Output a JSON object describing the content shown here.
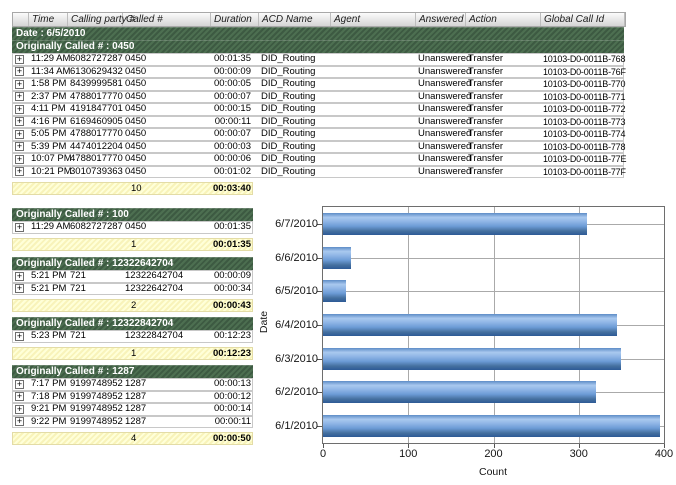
{
  "icons": {
    "expand": "+"
  },
  "table": {
    "columns": [
      "Time",
      "Calling party #",
      "Called #",
      "Duration",
      "ACD Name",
      "Agent",
      "Answered",
      "Action",
      "Global Call Id"
    ],
    "date_header": "Date : 6/5/2010",
    "groups": [
      {
        "title": "Originally Called # : 0450",
        "rows": [
          {
            "time": "11:29 AM",
            "calling": "6082727287",
            "called": "0450",
            "duration": "00:01:35",
            "acd": "DID_Routing",
            "agent": "",
            "answered": "Unanswered",
            "action": "Transfer",
            "global_id": "10103-D0-0011B-768"
          },
          {
            "time": "11:34 AM",
            "calling": "6130629432",
            "called": "0450",
            "duration": "00:00:09",
            "acd": "DID_Routing",
            "agent": "",
            "answered": "Unanswered",
            "action": "Transfer",
            "global_id": "10103-D0-0011B-76F"
          },
          {
            "time": "1:58 PM",
            "calling": "8439999581",
            "called": "0450",
            "duration": "00:00:05",
            "acd": "DID_Routing",
            "agent": "",
            "answered": "Unanswered",
            "action": "Transfer",
            "global_id": "10103-D0-0011B-770"
          },
          {
            "time": "2:37 PM",
            "calling": "4788017770",
            "called": "0450",
            "duration": "00:00:07",
            "acd": "DID_Routing",
            "agent": "",
            "answered": "Unanswered",
            "action": "Transfer",
            "global_id": "10103-D0-0011B-771"
          },
          {
            "time": "4:11 PM",
            "calling": "4191847701",
            "called": "0450",
            "duration": "00:00:15",
            "acd": "DID_Routing",
            "agent": "",
            "answered": "Unanswered",
            "action": "Transfer",
            "global_id": "10103-D0-0011B-772"
          },
          {
            "time": "4:16 PM",
            "calling": "6169460905",
            "called": "0450",
            "duration": "00:00:11",
            "acd": "DID_Routing",
            "agent": "",
            "answered": "Unanswered",
            "action": "Transfer",
            "global_id": "10103-D0-0011B-773"
          },
          {
            "time": "5:05 PM",
            "calling": "4788017770",
            "called": "0450",
            "duration": "00:00:07",
            "acd": "DID_Routing",
            "agent": "",
            "answered": "Unanswered",
            "action": "Transfer",
            "global_id": "10103-D0-0011B-774"
          },
          {
            "time": "5:39 PM",
            "calling": "4474012204",
            "called": "0450",
            "duration": "00:00:03",
            "acd": "DID_Routing",
            "agent": "",
            "answered": "Unanswered",
            "action": "Transfer",
            "global_id": "10103-D0-0011B-778"
          },
          {
            "time": "10:07 PM",
            "calling": "4788017770",
            "called": "0450",
            "duration": "00:00:06",
            "acd": "DID_Routing",
            "agent": "",
            "answered": "Unanswered",
            "action": "Transfer",
            "global_id": "10103-D0-0011B-77E"
          },
          {
            "time": "10:21 PM",
            "calling": "3010739363",
            "called": "0450",
            "duration": "00:01:02",
            "acd": "DID_Routing",
            "agent": "",
            "answered": "Unanswered",
            "action": "Transfer",
            "global_id": "10103-D0-0011B-77F"
          }
        ],
        "summary": {
          "count": "10",
          "total": "00:03:40"
        }
      },
      {
        "title": "Originally Called # : 100",
        "rows": [
          {
            "time": "11:29 AM",
            "calling": "6082727287",
            "called": "0450",
            "duration": "00:01:35"
          }
        ],
        "summary": {
          "count": "1",
          "total": "00:01:35"
        }
      },
      {
        "title": "Originally Called # : 12322642704",
        "rows": [
          {
            "time": "5:21 PM",
            "calling": "721",
            "called": "12322642704",
            "duration": "00:00:09"
          },
          {
            "time": "5:21 PM",
            "calling": "721",
            "called": "12322642704",
            "duration": "00:00:34"
          }
        ],
        "summary": {
          "count": "2",
          "total": "00:00:43"
        }
      },
      {
        "title": "Originally Called # : 12322842704",
        "rows": [
          {
            "time": "5:23 PM",
            "calling": "721",
            "called": "12322842704",
            "duration": "00:12:23"
          }
        ],
        "summary": {
          "count": "1",
          "total": "00:12:23"
        }
      },
      {
        "title": "Originally Called # : 1287",
        "rows": [
          {
            "time": "7:17 PM",
            "calling": "9199748952",
            "called": "1287",
            "duration": "00:00:13"
          },
          {
            "time": "7:18 PM",
            "calling": "9199748952",
            "called": "1287",
            "duration": "00:00:12"
          },
          {
            "time": "9:21 PM",
            "calling": "9199748952",
            "called": "1287",
            "duration": "00:00:14"
          },
          {
            "time": "9:22 PM",
            "calling": "9199748952",
            "called": "1287",
            "duration": "00:00:11"
          }
        ],
        "summary": {
          "count": "4",
          "total": "00:00:50"
        }
      }
    ]
  },
  "chart_data": {
    "type": "bar",
    "orientation": "horizontal",
    "title": "",
    "categories": [
      "6/7/2010",
      "6/6/2010",
      "6/5/2010",
      "6/4/2010",
      "6/3/2010",
      "6/2/2010",
      "6/1/2010"
    ],
    "values": [
      310,
      33,
      27,
      345,
      350,
      320,
      395
    ],
    "xlabel": "Count",
    "ylabel": "Date",
    "xlim": [
      0,
      400
    ],
    "xticks": [
      0,
      100,
      200,
      300,
      400
    ],
    "grid": true,
    "legend": "none",
    "bar_color": "#5b8fd3"
  },
  "colors": {
    "group_header_green": "#44634a",
    "summary_yellow": "#fbf7c0",
    "bar_blue_light": "#a9c9ef",
    "bar_blue_dark": "#2d5a96",
    "grid_gray": "#aaaaaa"
  }
}
